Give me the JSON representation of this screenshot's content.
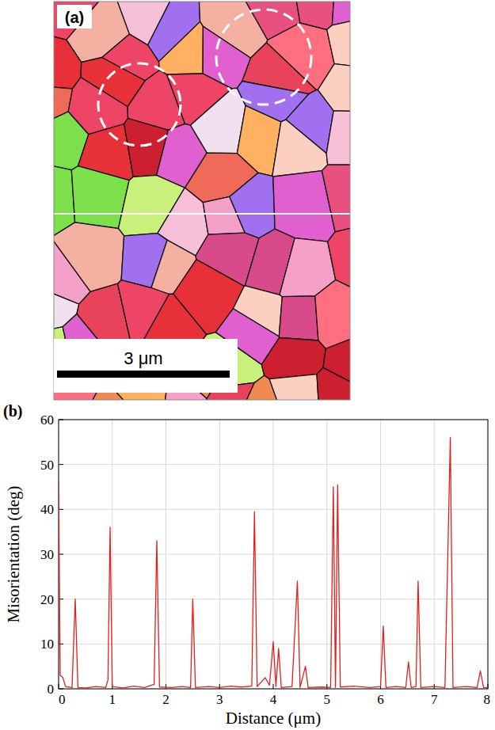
{
  "map": {
    "label": "(a)",
    "scale_bar": "3 μm"
  },
  "chart_data": {
    "type": "line",
    "label": "(b)",
    "x_label": "Distance (μm)",
    "y_label": "Misorientation (deg)",
    "xlim": [
      0,
      8
    ],
    "ylim": [
      0,
      60
    ],
    "xticks": [
      0,
      1,
      2,
      3,
      4,
      5,
      6,
      7,
      8
    ],
    "yticks": [
      0,
      10,
      20,
      30,
      40,
      50,
      60
    ],
    "grid": true,
    "series": [
      {
        "color": "#e0201e",
        "x": [
          0,
          0.03,
          0.08,
          0.13,
          0.25,
          0.31,
          0.36,
          0.5,
          0.7,
          0.88,
          0.92,
          0.96,
          1.0,
          1.2,
          1.4,
          1.6,
          1.78,
          1.83,
          1.88,
          2.1,
          2.3,
          2.46,
          2.5,
          2.55,
          2.8,
          3.0,
          3.2,
          3.4,
          3.6,
          3.65,
          3.7,
          3.85,
          3.93,
          4.0,
          4.05,
          4.1,
          4.15,
          4.35,
          4.45,
          4.5,
          4.6,
          4.65,
          4.9,
          5.07,
          5.12,
          5.16,
          5.2,
          5.25,
          5.5,
          5.8,
          6.0,
          6.05,
          6.1,
          6.3,
          6.47,
          6.52,
          6.57,
          6.66,
          6.7,
          6.75,
          7.0,
          7.2,
          7.3,
          7.35,
          7.6,
          7.8,
          7.86,
          7.92,
          8
        ],
        "values": [
          46,
          3,
          2.5,
          0.5,
          0.3,
          20,
          0.3,
          0.2,
          0.5,
          0.3,
          2,
          36,
          0.5,
          0.2,
          0.6,
          0.3,
          1,
          33,
          0.4,
          0.3,
          0.5,
          0.3,
          20,
          0.3,
          0.5,
          0.3,
          0.6,
          0.4,
          0.6,
          39.5,
          0.5,
          2.5,
          0.8,
          10.5,
          0.5,
          9,
          0.3,
          0.5,
          24,
          0.3,
          5,
          0.3,
          0.4,
          0.3,
          45,
          0.3,
          45.5,
          0.4,
          0.6,
          0.3,
          0.5,
          14,
          0.3,
          0.5,
          0.3,
          6,
          0.3,
          0.5,
          24,
          0.3,
          0.5,
          0.3,
          56,
          0.3,
          0.5,
          0.3,
          4,
          0.3,
          0.3
        ]
      }
    ]
  }
}
